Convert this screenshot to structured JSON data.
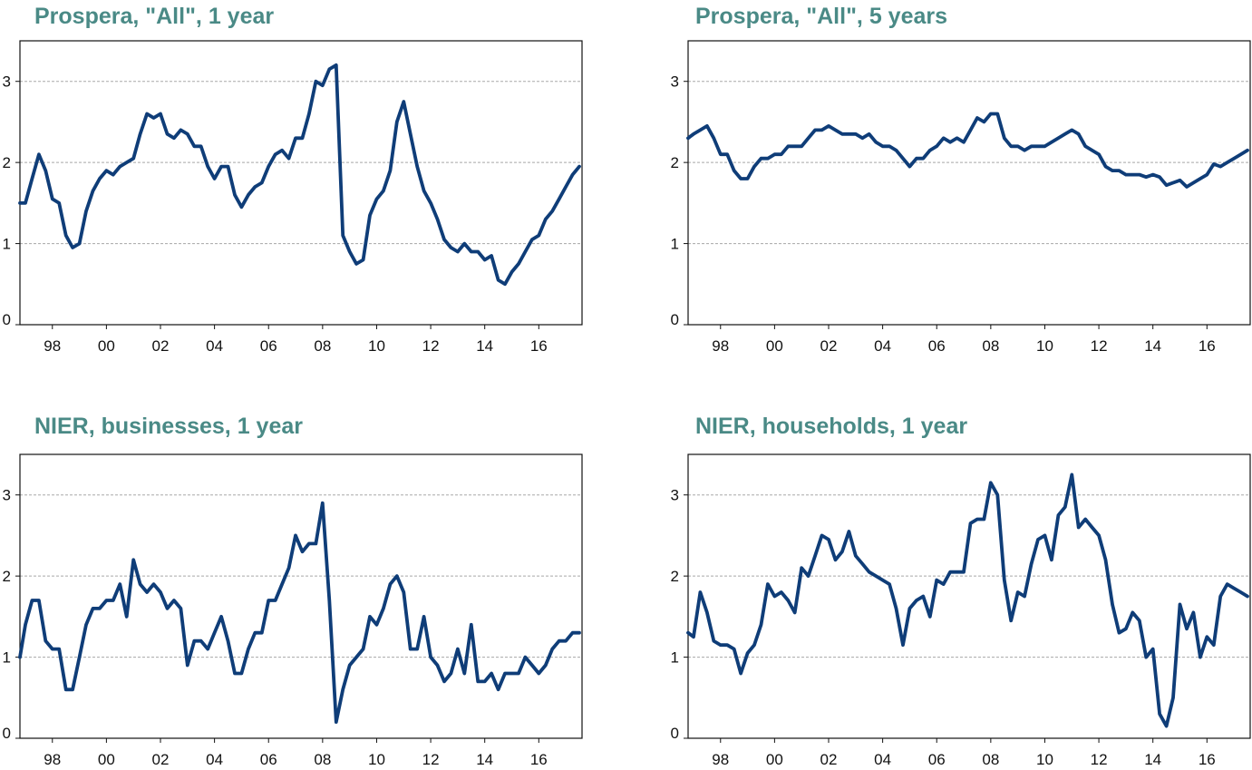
{
  "colors": {
    "title": "#4a8a86",
    "line": "#0f3d78",
    "grid": "#a8a8a8",
    "frame": "#111111"
  },
  "chart_data": [
    {
      "type": "line",
      "title": "Prospera, \"All\", 1 year",
      "xlabel": "",
      "ylabel": "",
      "xlim": [
        1996.8,
        2017.6
      ],
      "ylim": [
        0,
        3.5
      ],
      "grid": true,
      "x_ticks": [
        1998,
        2000,
        2002,
        2004,
        2006,
        2008,
        2010,
        2012,
        2014,
        2016
      ],
      "x_tick_labels": [
        "98",
        "00",
        "02",
        "04",
        "06",
        "08",
        "10",
        "12",
        "14",
        "16"
      ],
      "y_ticks": [
        0,
        1,
        2,
        3
      ],
      "y_tick_labels": [
        "0",
        "1",
        "2",
        "3"
      ],
      "series": [
        {
          "name": "Prospera, All, 1 year",
          "x": [
            1996.8,
            1997.0,
            1997.25,
            1997.5,
            1997.75,
            1998.0,
            1998.25,
            1998.5,
            1998.75,
            1999.0,
            1999.25,
            1999.5,
            1999.75,
            2000.0,
            2000.25,
            2000.5,
            2000.75,
            2001.0,
            2001.25,
            2001.5,
            2001.75,
            2002.0,
            2002.25,
            2002.5,
            2002.75,
            2003.0,
            2003.25,
            2003.5,
            2003.75,
            2004.0,
            2004.25,
            2004.5,
            2004.75,
            2005.0,
            2005.25,
            2005.5,
            2005.75,
            2006.0,
            2006.25,
            2006.5,
            2006.75,
            2007.0,
            2007.25,
            2007.5,
            2007.75,
            2008.0,
            2008.25,
            2008.5,
            2008.75,
            2009.0,
            2009.25,
            2009.5,
            2009.75,
            2010.0,
            2010.25,
            2010.5,
            2010.75,
            2011.0,
            2011.25,
            2011.5,
            2011.75,
            2012.0,
            2012.25,
            2012.5,
            2012.75,
            2013.0,
            2013.25,
            2013.5,
            2013.75,
            2014.0,
            2014.25,
            2014.5,
            2014.75,
            2015.0,
            2015.25,
            2015.5,
            2015.75,
            2016.0,
            2016.25,
            2016.5,
            2016.75,
            2017.0,
            2017.25,
            2017.5
          ],
          "values": [
            1.5,
            1.5,
            1.8,
            2.1,
            1.9,
            1.55,
            1.5,
            1.1,
            0.95,
            1.0,
            1.4,
            1.65,
            1.8,
            1.9,
            1.85,
            1.95,
            2.0,
            2.05,
            2.35,
            2.6,
            2.55,
            2.6,
            2.35,
            2.3,
            2.4,
            2.35,
            2.2,
            2.2,
            1.95,
            1.8,
            1.95,
            1.95,
            1.6,
            1.45,
            1.6,
            1.7,
            1.75,
            1.95,
            2.1,
            2.15,
            2.05,
            2.3,
            2.3,
            2.6,
            3.0,
            2.95,
            3.15,
            3.2,
            1.1,
            0.9,
            0.75,
            0.8,
            1.35,
            1.55,
            1.65,
            1.9,
            2.5,
            2.75,
            2.35,
            1.95,
            1.65,
            1.5,
            1.3,
            1.05,
            0.95,
            0.9,
            1.0,
            0.9,
            0.9,
            0.8,
            0.85,
            0.55,
            0.5,
            0.65,
            0.75,
            0.9,
            1.05,
            1.1,
            1.3,
            1.4,
            1.55,
            1.7,
            1.85,
            1.95
          ]
        }
      ]
    },
    {
      "type": "line",
      "title": "Prospera, \"All\", 5 years",
      "xlabel": "",
      "ylabel": "",
      "xlim": [
        1996.8,
        2017.6
      ],
      "ylim": [
        0,
        3.5
      ],
      "grid": true,
      "x_ticks": [
        1998,
        2000,
        2002,
        2004,
        2006,
        2008,
        2010,
        2012,
        2014,
        2016
      ],
      "x_tick_labels": [
        "98",
        "00",
        "02",
        "04",
        "06",
        "08",
        "10",
        "12",
        "14",
        "16"
      ],
      "y_ticks": [
        0,
        1,
        2,
        3
      ],
      "y_tick_labels": [
        "0",
        "1",
        "2",
        "3"
      ],
      "series": [
        {
          "name": "Prospera, All, 5 years",
          "x": [
            1996.8,
            1997.0,
            1997.25,
            1997.5,
            1997.75,
            1998.0,
            1998.25,
            1998.5,
            1998.75,
            1999.0,
            1999.25,
            1999.5,
            1999.75,
            2000.0,
            2000.25,
            2000.5,
            2000.75,
            2001.0,
            2001.25,
            2001.5,
            2001.75,
            2002.0,
            2002.25,
            2002.5,
            2002.75,
            2003.0,
            2003.25,
            2003.5,
            2003.75,
            2004.0,
            2004.25,
            2004.5,
            2004.75,
            2005.0,
            2005.25,
            2005.5,
            2005.75,
            2006.0,
            2006.25,
            2006.5,
            2006.75,
            2007.0,
            2007.25,
            2007.5,
            2007.75,
            2008.0,
            2008.25,
            2008.5,
            2008.75,
            2009.0,
            2009.25,
            2009.5,
            2009.75,
            2010.0,
            2010.25,
            2010.5,
            2010.75,
            2011.0,
            2011.25,
            2011.5,
            2011.75,
            2012.0,
            2012.25,
            2012.5,
            2012.75,
            2013.0,
            2013.25,
            2013.5,
            2013.75,
            2014.0,
            2014.25,
            2014.5,
            2014.75,
            2015.0,
            2015.25,
            2015.5,
            2015.75,
            2016.0,
            2016.25,
            2016.5,
            2016.75,
            2017.0,
            2017.25,
            2017.5
          ],
          "values": [
            2.3,
            2.35,
            2.4,
            2.45,
            2.3,
            2.1,
            2.1,
            1.9,
            1.8,
            1.8,
            1.95,
            2.05,
            2.05,
            2.1,
            2.1,
            2.2,
            2.2,
            2.2,
            2.3,
            2.4,
            2.4,
            2.45,
            2.4,
            2.35,
            2.35,
            2.35,
            2.3,
            2.35,
            2.25,
            2.2,
            2.2,
            2.15,
            2.05,
            1.95,
            2.05,
            2.05,
            2.15,
            2.2,
            2.3,
            2.25,
            2.3,
            2.25,
            2.4,
            2.55,
            2.5,
            2.6,
            2.6,
            2.3,
            2.2,
            2.2,
            2.15,
            2.2,
            2.2,
            2.2,
            2.25,
            2.3,
            2.35,
            2.4,
            2.35,
            2.2,
            2.15,
            2.1,
            1.95,
            1.9,
            1.9,
            1.85,
            1.85,
            1.85,
            1.82,
            1.85,
            1.82,
            1.72,
            1.75,
            1.78,
            1.7,
            1.75,
            1.8,
            1.85,
            1.98,
            1.95,
            2.0,
            2.05,
            2.1,
            2.15
          ]
        }
      ]
    },
    {
      "type": "line",
      "title": "NIER, businesses, 1 year",
      "xlabel": "",
      "ylabel": "",
      "xlim": [
        1996.8,
        2017.6
      ],
      "ylim": [
        0,
        3.5
      ],
      "grid": true,
      "x_ticks": [
        1998,
        2000,
        2002,
        2004,
        2006,
        2008,
        2010,
        2012,
        2014,
        2016
      ],
      "x_tick_labels": [
        "98",
        "00",
        "02",
        "04",
        "06",
        "08",
        "10",
        "12",
        "14",
        "16"
      ],
      "y_ticks": [
        0,
        1,
        2,
        3
      ],
      "y_tick_labels": [
        "0",
        "1",
        "2",
        "3"
      ],
      "series": [
        {
          "name": "NIER, businesses, 1 year",
          "x": [
            1996.8,
            1997.0,
            1997.25,
            1997.5,
            1997.75,
            1998.0,
            1998.25,
            1998.5,
            1998.75,
            1999.0,
            1999.25,
            1999.5,
            1999.75,
            2000.0,
            2000.25,
            2000.5,
            2000.75,
            2001.0,
            2001.25,
            2001.5,
            2001.75,
            2002.0,
            2002.25,
            2002.5,
            2002.75,
            2003.0,
            2003.25,
            2003.5,
            2003.75,
            2004.0,
            2004.25,
            2004.5,
            2004.75,
            2005.0,
            2005.25,
            2005.5,
            2005.75,
            2006.0,
            2006.25,
            2006.5,
            2006.75,
            2007.0,
            2007.25,
            2007.5,
            2007.75,
            2008.0,
            2008.25,
            2008.5,
            2008.75,
            2009.0,
            2009.25,
            2009.5,
            2009.75,
            2010.0,
            2010.25,
            2010.5,
            2010.75,
            2011.0,
            2011.25,
            2011.5,
            2011.75,
            2012.0,
            2012.25,
            2012.5,
            2012.75,
            2013.0,
            2013.25,
            2013.5,
            2013.75,
            2014.0,
            2014.25,
            2014.5,
            2014.75,
            2015.0,
            2015.25,
            2015.5,
            2015.75,
            2016.0,
            2016.25,
            2016.5,
            2016.75,
            2017.0,
            2017.25,
            2017.5
          ],
          "values": [
            1.0,
            1.4,
            1.7,
            1.7,
            1.2,
            1.1,
            1.1,
            0.6,
            0.6,
            1.0,
            1.4,
            1.6,
            1.6,
            1.7,
            1.7,
            1.9,
            1.5,
            2.2,
            1.9,
            1.8,
            1.9,
            1.8,
            1.6,
            1.7,
            1.6,
            0.9,
            1.2,
            1.2,
            1.1,
            1.3,
            1.5,
            1.2,
            0.8,
            0.8,
            1.1,
            1.3,
            1.3,
            1.7,
            1.7,
            1.9,
            2.1,
            2.5,
            2.3,
            2.4,
            2.4,
            2.9,
            1.7,
            0.2,
            0.6,
            0.9,
            1.0,
            1.1,
            1.5,
            1.4,
            1.6,
            1.9,
            2.0,
            1.8,
            1.1,
            1.1,
            1.5,
            1.0,
            0.9,
            0.7,
            0.8,
            1.1,
            0.8,
            1.4,
            0.7,
            0.7,
            0.8,
            0.6,
            0.8,
            0.8,
            0.8,
            1.0,
            0.9,
            0.8,
            0.9,
            1.1,
            1.2,
            1.2,
            1.3,
            1.3
          ]
        }
      ]
    },
    {
      "type": "line",
      "title": "NIER, households, 1 year",
      "xlabel": "",
      "ylabel": "",
      "xlim": [
        1996.8,
        2017.6
      ],
      "ylim": [
        0,
        3.5
      ],
      "grid": true,
      "x_ticks": [
        1998,
        2000,
        2002,
        2004,
        2006,
        2008,
        2010,
        2012,
        2014,
        2016
      ],
      "x_tick_labels": [
        "98",
        "00",
        "02",
        "04",
        "06",
        "08",
        "10",
        "12",
        "14",
        "16"
      ],
      "y_ticks": [
        0,
        1,
        2,
        3
      ],
      "y_tick_labels": [
        "0",
        "1",
        "2",
        "3"
      ],
      "series": [
        {
          "name": "NIER, households, 1 year",
          "x": [
            1996.8,
            1997.0,
            1997.25,
            1997.5,
            1997.75,
            1998.0,
            1998.25,
            1998.5,
            1998.75,
            1999.0,
            1999.25,
            1999.5,
            1999.75,
            2000.0,
            2000.25,
            2000.5,
            2000.75,
            2001.0,
            2001.25,
            2001.5,
            2001.75,
            2002.0,
            2002.25,
            2002.5,
            2002.75,
            2003.0,
            2003.25,
            2003.5,
            2003.75,
            2004.0,
            2004.25,
            2004.5,
            2004.75,
            2005.0,
            2005.25,
            2005.5,
            2005.75,
            2006.0,
            2006.25,
            2006.5,
            2006.75,
            2007.0,
            2007.25,
            2007.5,
            2007.75,
            2008.0,
            2008.25,
            2008.5,
            2008.75,
            2009.0,
            2009.25,
            2009.5,
            2009.75,
            2010.0,
            2010.25,
            2010.5,
            2010.75,
            2011.0,
            2011.25,
            2011.5,
            2011.75,
            2012.0,
            2012.25,
            2012.5,
            2012.75,
            2013.0,
            2013.25,
            2013.5,
            2013.75,
            2014.0,
            2014.25,
            2014.5,
            2014.75,
            2015.0,
            2015.25,
            2015.5,
            2015.75,
            2016.0,
            2016.25,
            2016.5,
            2016.75,
            2017.0,
            2017.25,
            2017.5
          ],
          "values": [
            1.3,
            1.25,
            1.8,
            1.55,
            1.2,
            1.15,
            1.15,
            1.1,
            0.8,
            1.05,
            1.15,
            1.4,
            1.9,
            1.75,
            1.8,
            1.7,
            1.55,
            2.1,
            2.0,
            2.25,
            2.5,
            2.45,
            2.2,
            2.3,
            2.55,
            2.25,
            2.15,
            2.05,
            2.0,
            1.95,
            1.9,
            1.6,
            1.15,
            1.6,
            1.7,
            1.75,
            1.5,
            1.95,
            1.9,
            2.05,
            2.05,
            2.05,
            2.65,
            2.7,
            2.7,
            3.15,
            3.0,
            1.95,
            1.45,
            1.8,
            1.75,
            2.15,
            2.45,
            2.5,
            2.2,
            2.75,
            2.85,
            3.25,
            2.6,
            2.7,
            2.6,
            2.5,
            2.2,
            1.65,
            1.3,
            1.35,
            1.55,
            1.45,
            1.0,
            1.1,
            0.3,
            0.15,
            0.5,
            1.65,
            1.35,
            1.55,
            1.0,
            1.25,
            1.15,
            1.75,
            1.9,
            1.85,
            1.8,
            1.75
          ]
        }
      ]
    }
  ]
}
